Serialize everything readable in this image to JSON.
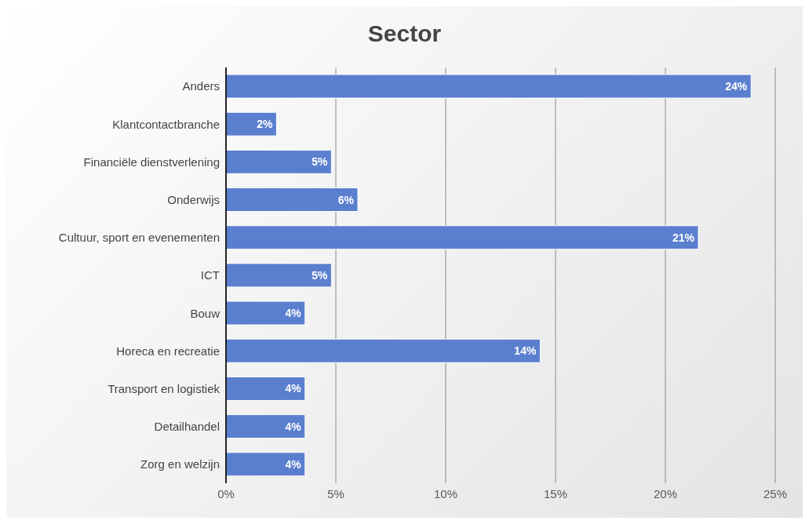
{
  "chart_data": {
    "type": "bar",
    "orientation": "horizontal",
    "title": "Sector",
    "categories": [
      "Anders",
      "Klantcontactbranche",
      "Financiële dienstverlening",
      "Onderwijs",
      "Cultuur, sport en evenementen",
      "ICT",
      "Bouw",
      "Horeca en recreatie",
      "Transport en logistiek",
      "Detailhandel",
      "Zorg en welzijn"
    ],
    "values": [
      23.9,
      2.3,
      4.8,
      6.0,
      21.5,
      4.8,
      3.6,
      14.3,
      3.6,
      3.6,
      3.6
    ],
    "value_labels": [
      "24%",
      "2%",
      "5%",
      "6%",
      "21%",
      "5%",
      "4%",
      "14%",
      "4%",
      "4%",
      "4%"
    ],
    "color": "#5b7fcf",
    "xlim": [
      0,
      25
    ],
    "xticks": [
      {
        "value": 0,
        "label": "0%"
      },
      {
        "value": 5,
        "label": "5%"
      },
      {
        "value": 10,
        "label": "10%"
      },
      {
        "value": 15,
        "label": "15%"
      },
      {
        "value": 20,
        "label": "20%"
      },
      {
        "value": 25,
        "label": "25%"
      }
    ],
    "grid": "x"
  }
}
